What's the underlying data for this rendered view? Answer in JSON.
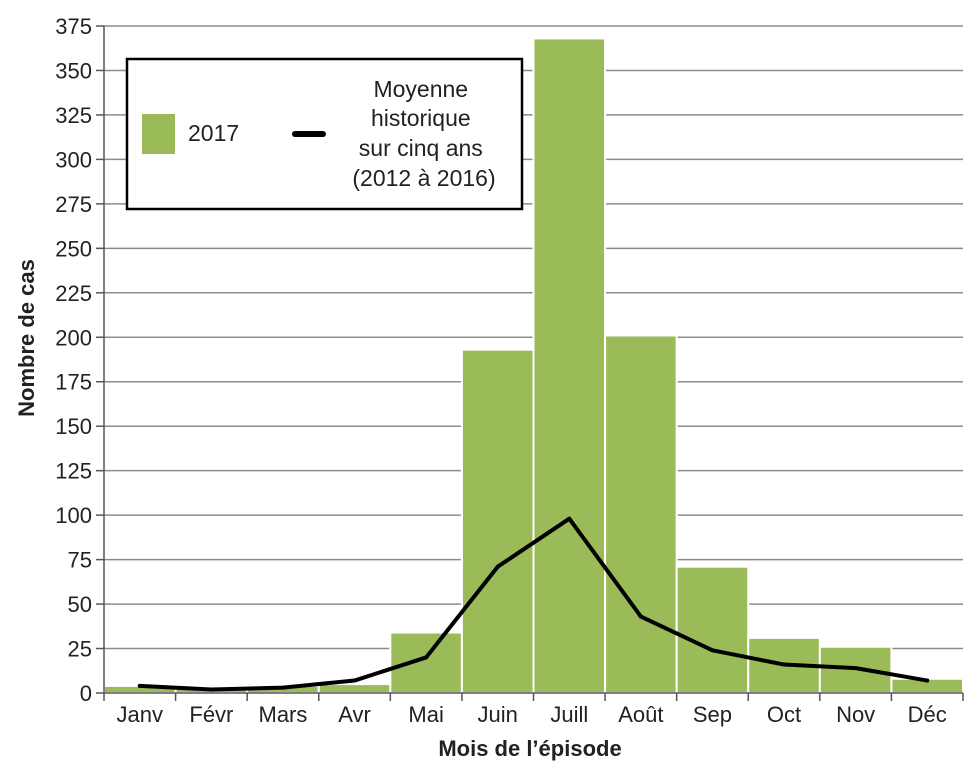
{
  "chart_data": {
    "type": "bar",
    "xlabel": "Mois de l’épisode",
    "ylabel": "Nombre de cas",
    "ylim": [
      0,
      375
    ],
    "yticks": [
      0,
      25,
      50,
      75,
      100,
      125,
      150,
      175,
      200,
      225,
      250,
      275,
      300,
      325,
      350,
      375
    ],
    "grid": true,
    "legend_position": "top-left",
    "categories": [
      "Janv",
      "Févr",
      "Mars",
      "Avr",
      "Mai",
      "Juin",
      "Juill",
      "Août",
      "Sep",
      "Oct",
      "Nov",
      "Déc"
    ],
    "series": [
      {
        "name": "2017",
        "type": "bar",
        "color": "#9bbb59",
        "values": [
          4,
          3,
          4,
          5,
          34,
          193,
          368,
          201,
          71,
          31,
          26,
          8
        ]
      },
      {
        "name": "Moyenne historique sur cinq ans (2012 à 2016)",
        "type": "line",
        "color": "#000000",
        "values": [
          4,
          2,
          3,
          7,
          20,
          71,
          98,
          43,
          24,
          16,
          14,
          7
        ]
      }
    ],
    "legend": {
      "bar_label": "2017",
      "line_label_lines": [
        "Moyenne",
        "historique",
        "sur cinq ans",
        "(2012 à 2016)"
      ]
    }
  }
}
